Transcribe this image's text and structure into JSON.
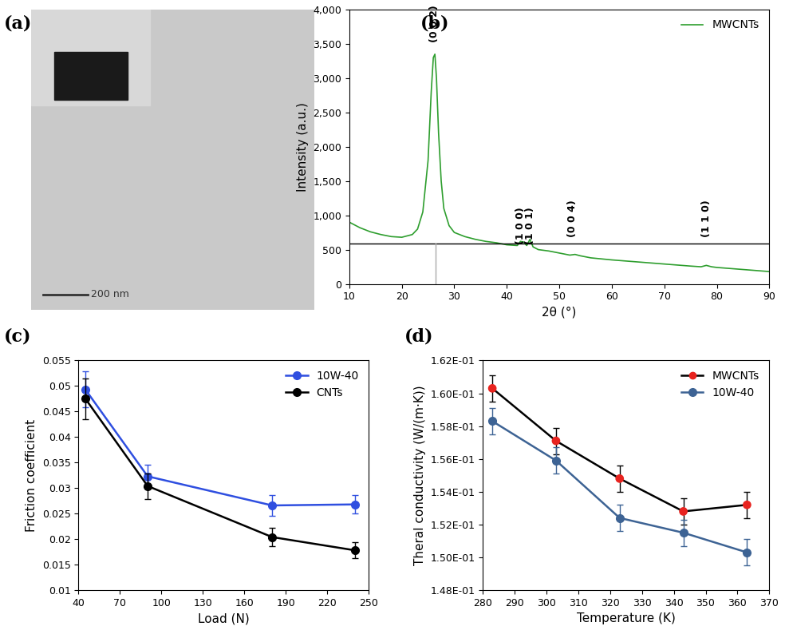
{
  "chart_data": [
    {
      "type": "image",
      "panel_label": "(a)",
      "scale_bar": "200 nm"
    },
    {
      "type": "line",
      "panel_label": "(b)",
      "x_label": "2θ (°)",
      "y_label": "Intensity (a.u.)",
      "xlim": [
        10,
        90
      ],
      "xticks": [
        10,
        20,
        30,
        40,
        50,
        60,
        70,
        80,
        90
      ],
      "ylim": [
        0,
        4000
      ],
      "yticks": [
        0,
        500,
        {
          "value": 1000,
          "label": "1,000"
        },
        {
          "value": 1500,
          "label": "1,500"
        },
        {
          "value": 2000,
          "label": "2,000"
        },
        {
          "value": 2500,
          "label": "2,500"
        },
        {
          "value": 3000,
          "label": "3,000"
        },
        {
          "value": 3500,
          "label": "3,500"
        },
        {
          "value": 4000,
          "label": "4,000"
        }
      ],
      "legend": "upper right",
      "x": [
        10,
        12,
        14,
        16,
        18,
        20,
        22,
        23,
        24,
        25,
        25.6,
        26.0,
        26.3,
        26.6,
        27,
        27.5,
        28,
        29,
        30,
        32,
        34,
        36,
        38,
        40,
        42,
        42.6,
        43.2,
        43.8,
        44.4,
        45,
        46,
        48,
        50,
        52,
        53,
        54,
        56,
        60,
        65,
        70,
        75,
        77,
        78,
        79,
        80,
        85,
        90
      ],
      "series": [
        {
          "name": "MWCNTs",
          "color": "#2e9e2e",
          "values": [
            900,
            820,
            760,
            720,
            690,
            680,
            720,
            800,
            1050,
            1800,
            2800,
            3300,
            3350,
            3000,
            2200,
            1500,
            1100,
            850,
            750,
            690,
            650,
            620,
            600,
            570,
            560,
            620,
            610,
            560,
            650,
            540,
            500,
            480,
            450,
            420,
            430,
            410,
            380,
            350,
            320,
            290,
            260,
            250,
            270,
            250,
            240,
            210,
            180
          ]
        }
      ],
      "reference_line": {
        "x": 26.4,
        "y": 590
      },
      "annotations": [
        {
          "text": "(0 0 2)",
          "x": 26.2,
          "y": 3800
        },
        {
          "text": "(1 0 0)",
          "x": 42.6,
          "y": 850
        },
        {
          "text": "(1 0 1)",
          "x": 44.4,
          "y": 850
        },
        {
          "text": "(0 0 4)",
          "x": 52.5,
          "y": 950
        },
        {
          "text": "(1 1 0)",
          "x": 78,
          "y": 950
        }
      ]
    },
    {
      "type": "line",
      "panel_label": "(c)",
      "x_label": "Load (N)",
      "y_label": "Friction coefficient",
      "xlim": [
        40,
        250
      ],
      "xticks": [
        40,
        70,
        100,
        130,
        160,
        190,
        220,
        250
      ],
      "ylim": [
        0.01,
        0.055
      ],
      "yticks": [
        0.01,
        0.015,
        0.02,
        0.025,
        0.03,
        0.035,
        0.04,
        0.045,
        0.05,
        0.055
      ],
      "legend": "upper right",
      "marker": "o",
      "x": [
        45,
        90,
        180,
        240
      ],
      "series": [
        {
          "name": "10W-40",
          "color": "#2f4fe0",
          "values": [
            0.0493,
            0.0323,
            0.0266,
            0.0268
          ],
          "errors": [
            0.0035,
            0.0022,
            0.002,
            0.0018
          ]
        },
        {
          "name": "CNTs",
          "color": "#000000",
          "values": [
            0.0475,
            0.0304,
            0.0204,
            0.0178
          ],
          "errors": [
            0.004,
            0.0025,
            0.0018,
            0.0016
          ]
        }
      ]
    },
    {
      "type": "line",
      "panel_label": "(d)",
      "x_label": "Temperature (K)",
      "y_label": "Theral conductivity (W/(m·K))",
      "xlim": [
        280,
        370
      ],
      "xticks": [
        280,
        290,
        300,
        310,
        320,
        330,
        340,
        350,
        360,
        370
      ],
      "ylim": [
        0.148,
        0.162
      ],
      "yticks": [
        {
          "value": 0.148,
          "label": "1.48E-01"
        },
        {
          "value": 0.15,
          "label": "1.50E-01"
        },
        {
          "value": 0.152,
          "label": "1.52E-01"
        },
        {
          "value": 0.154,
          "label": "1.54E-01"
        },
        {
          "value": 0.156,
          "label": "1.56E-01"
        },
        {
          "value": 0.158,
          "label": "1.58E-01"
        },
        {
          "value": 0.16,
          "label": "1.60E-01"
        },
        {
          "value": 0.162,
          "label": "1.62E-01"
        }
      ],
      "legend": "upper right",
      "marker": "o",
      "x": [
        283,
        303,
        323,
        343,
        363
      ],
      "series": [
        {
          "name": "MWCNTs",
          "color": "#000000",
          "colors": [
            "#e8231f",
            "#e8231f",
            "#e8231f",
            "#e8231f",
            "#e8231f"
          ],
          "values": [
            0.1603,
            0.1571,
            0.1548,
            0.1528,
            0.1532
          ],
          "errors": [
            0.0008,
            0.0008,
            0.0008,
            0.0008,
            0.0008
          ]
        },
        {
          "name": "10W-40",
          "color": "#3d6394",
          "values": [
            0.1583,
            0.1559,
            0.1524,
            0.1515,
            0.1503
          ],
          "errors": [
            0.0008,
            0.0008,
            0.0008,
            0.0008,
            0.0008
          ]
        }
      ]
    }
  ]
}
